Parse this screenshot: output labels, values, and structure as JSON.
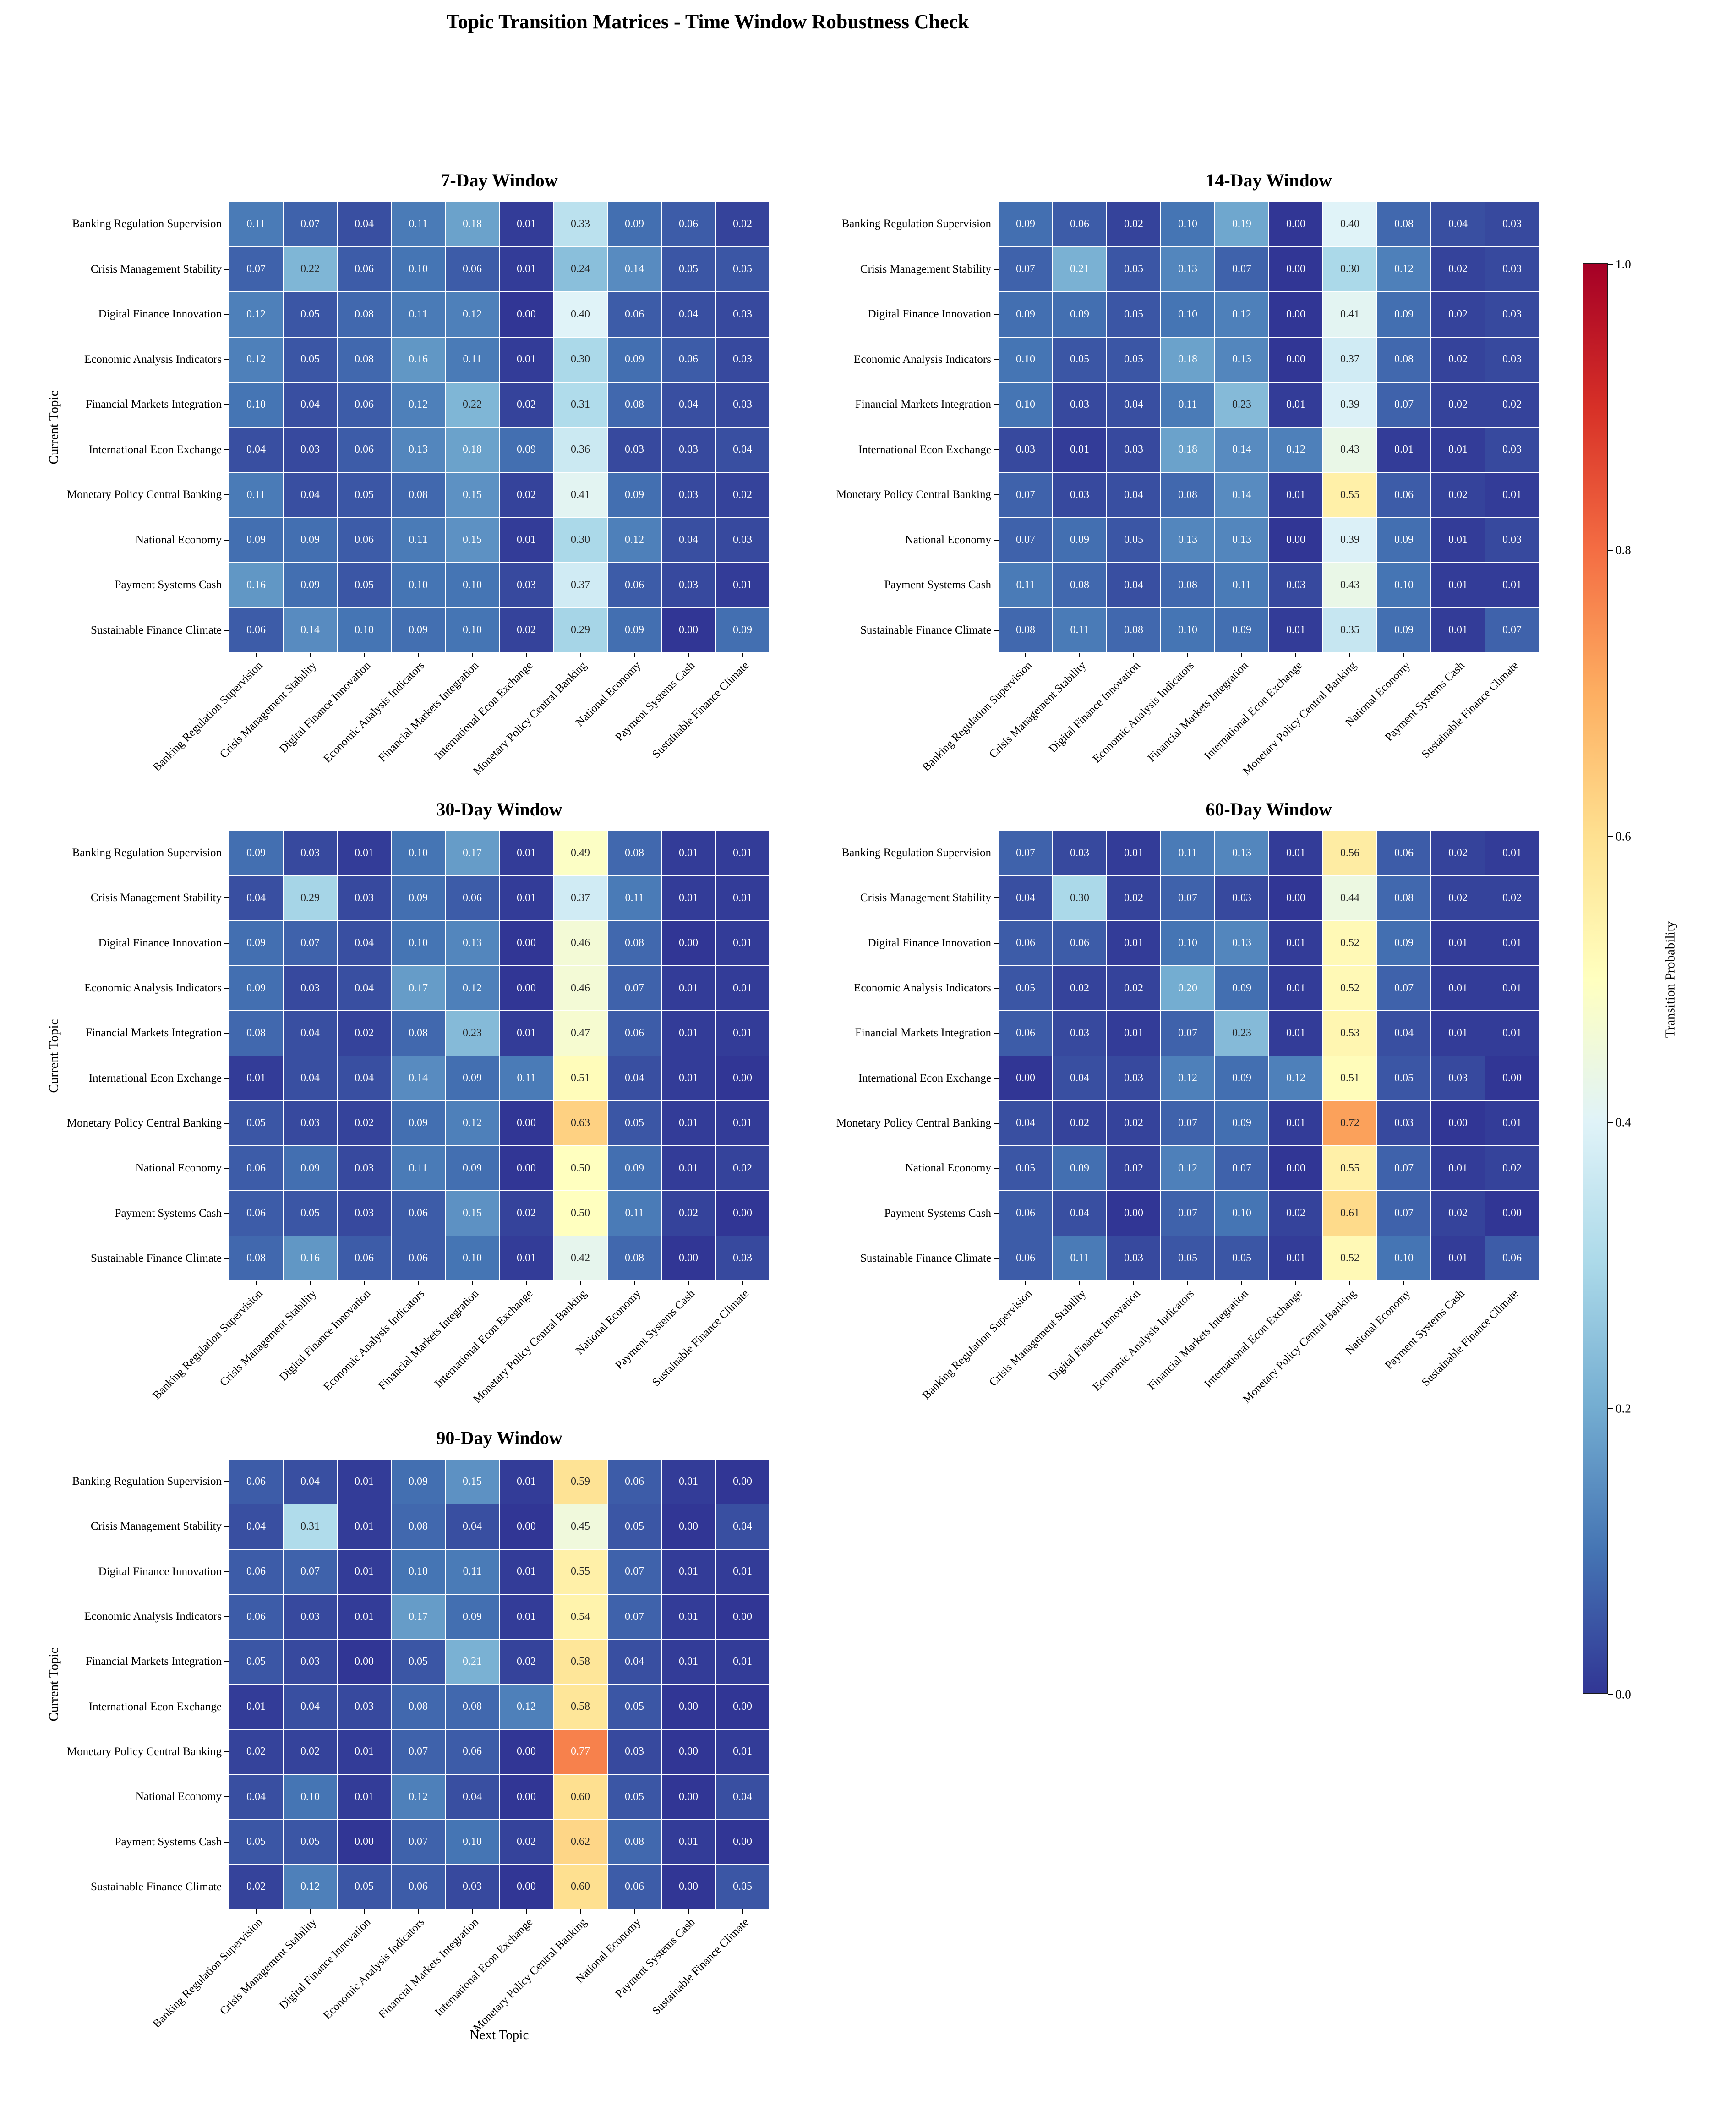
{
  "title": "Topic Transition Matrices - Time Window Robustness Check",
  "ylabel": "Current Topic",
  "xlabel": "Next Topic",
  "colorbar": {
    "label": "Transition Probability",
    "ticks": [
      0.0,
      0.2,
      0.4,
      0.6,
      0.8,
      1.0
    ]
  },
  "chart_data": {
    "type": "heatmap",
    "colormap": "RdYlBu_r",
    "vmin": 0.0,
    "vmax": 1.0,
    "colormap_stops": [
      "#313695",
      "#4575b4",
      "#74add1",
      "#abd9e9",
      "#e0f3f8",
      "#ffffbf",
      "#fee090",
      "#fdae61",
      "#f46d43",
      "#d73027",
      "#a50026"
    ],
    "layout": {
      "grid_rows": 3,
      "grid_cols": 2,
      "colorbar_position": "right",
      "grid_lines": "white"
    },
    "categories": [
      "Banking Regulation Supervision",
      "Crisis Management Stability",
      "Digital Finance Innovation",
      "Economic Analysis Indicators",
      "Financial Markets Integration",
      "International Econ Exchange",
      "Monetary Policy Central Banking",
      "National Economy",
      "Payment Systems Cash",
      "Sustainable Finance Climate"
    ],
    "matrices": [
      {
        "title": "7-Day Window",
        "values": [
          [
            0.11,
            0.07,
            0.04,
            0.11,
            0.18,
            0.01,
            0.33,
            0.09,
            0.06,
            0.02
          ],
          [
            0.07,
            0.22,
            0.06,
            0.1,
            0.06,
            0.01,
            0.24,
            0.14,
            0.05,
            0.05
          ],
          [
            0.12,
            0.05,
            0.08,
            0.11,
            0.12,
            0.0,
            0.4,
            0.06,
            0.04,
            0.03
          ],
          [
            0.12,
            0.05,
            0.08,
            0.16,
            0.11,
            0.01,
            0.3,
            0.09,
            0.06,
            0.03
          ],
          [
            0.1,
            0.04,
            0.06,
            0.12,
            0.22,
            0.02,
            0.31,
            0.08,
            0.04,
            0.03
          ],
          [
            0.04,
            0.03,
            0.06,
            0.13,
            0.18,
            0.09,
            0.36,
            0.03,
            0.03,
            0.04
          ],
          [
            0.11,
            0.04,
            0.05,
            0.08,
            0.15,
            0.02,
            0.41,
            0.09,
            0.03,
            0.02
          ],
          [
            0.09,
            0.09,
            0.06,
            0.11,
            0.15,
            0.01,
            0.3,
            0.12,
            0.04,
            0.03
          ],
          [
            0.16,
            0.09,
            0.05,
            0.1,
            0.1,
            0.03,
            0.37,
            0.06,
            0.03,
            0.01
          ],
          [
            0.06,
            0.14,
            0.1,
            0.09,
            0.1,
            0.02,
            0.29,
            0.09,
            0.0,
            0.09
          ]
        ]
      },
      {
        "title": "14-Day Window",
        "values": [
          [
            0.09,
            0.06,
            0.02,
            0.1,
            0.19,
            0.0,
            0.4,
            0.08,
            0.04,
            0.03
          ],
          [
            0.07,
            0.21,
            0.05,
            0.13,
            0.07,
            0.0,
            0.3,
            0.12,
            0.02,
            0.03
          ],
          [
            0.09,
            0.09,
            0.05,
            0.1,
            0.12,
            0.0,
            0.41,
            0.09,
            0.02,
            0.03
          ],
          [
            0.1,
            0.05,
            0.05,
            0.18,
            0.13,
            0.0,
            0.37,
            0.08,
            0.02,
            0.03
          ],
          [
            0.1,
            0.03,
            0.04,
            0.11,
            0.23,
            0.01,
            0.39,
            0.07,
            0.02,
            0.02
          ],
          [
            0.03,
            0.01,
            0.03,
            0.18,
            0.14,
            0.12,
            0.43,
            0.01,
            0.01,
            0.03
          ],
          [
            0.07,
            0.03,
            0.04,
            0.08,
            0.14,
            0.01,
            0.55,
            0.06,
            0.02,
            0.01
          ],
          [
            0.07,
            0.09,
            0.05,
            0.13,
            0.13,
            0.0,
            0.39,
            0.09,
            0.01,
            0.03
          ],
          [
            0.11,
            0.08,
            0.04,
            0.08,
            0.11,
            0.03,
            0.43,
            0.1,
            0.01,
            0.01
          ],
          [
            0.08,
            0.11,
            0.08,
            0.1,
            0.09,
            0.01,
            0.35,
            0.09,
            0.01,
            0.07
          ]
        ]
      },
      {
        "title": "30-Day Window",
        "values": [
          [
            0.09,
            0.03,
            0.01,
            0.1,
            0.17,
            0.01,
            0.49,
            0.08,
            0.01,
            0.01
          ],
          [
            0.04,
            0.29,
            0.03,
            0.09,
            0.06,
            0.01,
            0.37,
            0.11,
            0.01,
            0.01
          ],
          [
            0.09,
            0.07,
            0.04,
            0.1,
            0.13,
            0.0,
            0.46,
            0.08,
            0.0,
            0.01
          ],
          [
            0.09,
            0.03,
            0.04,
            0.17,
            0.12,
            0.0,
            0.46,
            0.07,
            0.01,
            0.01
          ],
          [
            0.08,
            0.04,
            0.02,
            0.08,
            0.23,
            0.01,
            0.47,
            0.06,
            0.01,
            0.01
          ],
          [
            0.01,
            0.04,
            0.04,
            0.14,
            0.09,
            0.11,
            0.51,
            0.04,
            0.01,
            0.0
          ],
          [
            0.05,
            0.03,
            0.02,
            0.09,
            0.12,
            0.0,
            0.63,
            0.05,
            0.01,
            0.01
          ],
          [
            0.06,
            0.09,
            0.03,
            0.11,
            0.09,
            0.0,
            0.5,
            0.09,
            0.01,
            0.02
          ],
          [
            0.06,
            0.05,
            0.03,
            0.06,
            0.15,
            0.02,
            0.5,
            0.11,
            0.02,
            0.0
          ],
          [
            0.08,
            0.16,
            0.06,
            0.06,
            0.1,
            0.01,
            0.42,
            0.08,
            0.0,
            0.03
          ]
        ]
      },
      {
        "title": "60-Day Window",
        "values": [
          [
            0.07,
            0.03,
            0.01,
            0.11,
            0.13,
            0.01,
            0.56,
            0.06,
            0.02,
            0.01
          ],
          [
            0.04,
            0.3,
            0.02,
            0.07,
            0.03,
            0.0,
            0.44,
            0.08,
            0.02,
            0.02
          ],
          [
            0.06,
            0.06,
            0.01,
            0.1,
            0.13,
            0.01,
            0.52,
            0.09,
            0.01,
            0.01
          ],
          [
            0.05,
            0.02,
            0.02,
            0.2,
            0.09,
            0.01,
            0.52,
            0.07,
            0.01,
            0.01
          ],
          [
            0.06,
            0.03,
            0.01,
            0.07,
            0.23,
            0.01,
            0.53,
            0.04,
            0.01,
            0.01
          ],
          [
            0.0,
            0.04,
            0.03,
            0.12,
            0.09,
            0.12,
            0.51,
            0.05,
            0.03,
            0.0
          ],
          [
            0.04,
            0.02,
            0.02,
            0.07,
            0.09,
            0.01,
            0.72,
            0.03,
            0.0,
            0.01
          ],
          [
            0.05,
            0.09,
            0.02,
            0.12,
            0.07,
            0.0,
            0.55,
            0.07,
            0.01,
            0.02
          ],
          [
            0.06,
            0.04,
            0.0,
            0.07,
            0.1,
            0.02,
            0.61,
            0.07,
            0.02,
            0.0
          ],
          [
            0.06,
            0.11,
            0.03,
            0.05,
            0.05,
            0.01,
            0.52,
            0.1,
            0.01,
            0.06
          ]
        ]
      },
      {
        "title": "90-Day Window",
        "values": [
          [
            0.06,
            0.04,
            0.01,
            0.09,
            0.15,
            0.01,
            0.59,
            0.06,
            0.01,
            0.0
          ],
          [
            0.04,
            0.31,
            0.01,
            0.08,
            0.04,
            0.0,
            0.45,
            0.05,
            0.0,
            0.04
          ],
          [
            0.06,
            0.07,
            0.01,
            0.1,
            0.11,
            0.01,
            0.55,
            0.07,
            0.01,
            0.01
          ],
          [
            0.06,
            0.03,
            0.01,
            0.17,
            0.09,
            0.01,
            0.54,
            0.07,
            0.01,
            0.0
          ],
          [
            0.05,
            0.03,
            0.0,
            0.05,
            0.21,
            0.02,
            0.58,
            0.04,
            0.01,
            0.01
          ],
          [
            0.01,
            0.04,
            0.03,
            0.08,
            0.08,
            0.12,
            0.58,
            0.05,
            0.0,
            0.0
          ],
          [
            0.02,
            0.02,
            0.01,
            0.07,
            0.06,
            0.0,
            0.77,
            0.03,
            0.0,
            0.01
          ],
          [
            0.04,
            0.1,
            0.01,
            0.12,
            0.04,
            0.0,
            0.6,
            0.05,
            0.0,
            0.04
          ],
          [
            0.05,
            0.05,
            0.0,
            0.07,
            0.1,
            0.02,
            0.62,
            0.08,
            0.01,
            0.0
          ],
          [
            0.02,
            0.12,
            0.05,
            0.06,
            0.03,
            0.0,
            0.6,
            0.06,
            0.0,
            0.05
          ]
        ]
      }
    ]
  }
}
